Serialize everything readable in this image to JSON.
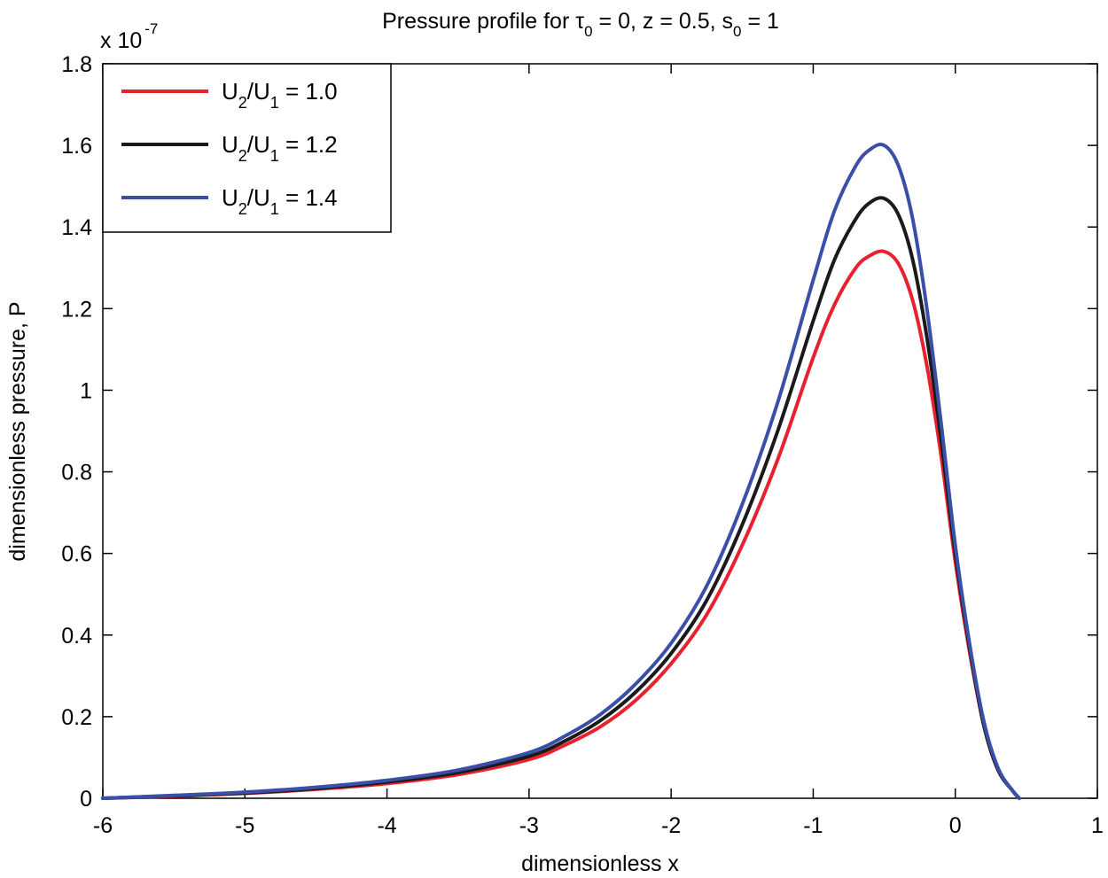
{
  "chart_data": {
    "type": "line",
    "title": {
      "prefix": "Pressure profile for ",
      "tau_symbol": "τ",
      "tau_sub": "0",
      "middle": " = 0, z = 0.5, s",
      "s_sub": "0",
      "suffix": " = 1"
    },
    "xlabel": "dimensionless x",
    "ylabel": "dimensionless pressure, P",
    "y_multiplier": {
      "base": "x 10",
      "exponent": "-7"
    },
    "xlim": [
      -6,
      1
    ],
    "ylim": [
      0,
      1.8
    ],
    "x_ticks": [
      -6,
      -5,
      -4,
      -3,
      -2,
      -1,
      0,
      1
    ],
    "x_tick_labels": [
      "-6",
      "-5",
      "-4",
      "-3",
      "-2",
      "-1",
      "0",
      "1"
    ],
    "y_ticks": [
      0,
      0.2,
      0.4,
      0.6,
      0.8,
      1.0,
      1.2,
      1.4,
      1.6,
      1.8
    ],
    "y_tick_labels": [
      "0",
      "0.2",
      "0.4",
      "0.6",
      "0.8",
      "1",
      "1.2",
      "1.4",
      "1.6",
      "1.8"
    ],
    "grid": false,
    "legend_position": "top-left",
    "series": [
      {
        "name": "U2/U1 = 1.0",
        "label": {
          "a": "U",
          "a_sub": "2",
          "mid": "/U",
          "b_sub": "1",
          "rest": " = 1.0"
        },
        "color": "#e8212e",
        "x": [
          -6.0,
          -5.5,
          -5.0,
          -4.5,
          -4.0,
          -3.5,
          -3.0,
          -2.75,
          -2.5,
          -2.25,
          -2.0,
          -1.75,
          -1.5,
          -1.25,
          -1.0,
          -0.85,
          -0.7,
          -0.6,
          -0.5,
          -0.4,
          -0.3,
          -0.2,
          -0.1,
          0.0,
          0.1,
          0.2,
          0.3,
          0.4,
          0.45
        ],
        "y": [
          0.0,
          0.005,
          0.012,
          0.022,
          0.036,
          0.058,
          0.095,
          0.13,
          0.175,
          0.24,
          0.33,
          0.45,
          0.62,
          0.83,
          1.08,
          1.21,
          1.3,
          1.33,
          1.34,
          1.31,
          1.22,
          1.06,
          0.84,
          0.58,
          0.36,
          0.18,
          0.07,
          0.02,
          0.0
        ]
      },
      {
        "name": "U2/U1 = 1.2",
        "label": {
          "a": "U",
          "a_sub": "2",
          "mid": "/U",
          "b_sub": "1",
          "rest": " = 1.2"
        },
        "color": "#1a1a1a",
        "x": [
          -6.0,
          -5.5,
          -5.0,
          -4.5,
          -4.0,
          -3.5,
          -3.0,
          -2.75,
          -2.5,
          -2.25,
          -2.0,
          -1.75,
          -1.5,
          -1.25,
          -1.0,
          -0.85,
          -0.7,
          -0.6,
          -0.5,
          -0.4,
          -0.3,
          -0.2,
          -0.1,
          0.0,
          0.1,
          0.2,
          0.3,
          0.4,
          0.45
        ],
        "y": [
          0.0,
          0.006,
          0.013,
          0.024,
          0.04,
          0.063,
          0.103,
          0.14,
          0.19,
          0.26,
          0.355,
          0.485,
          0.67,
          0.9,
          1.17,
          1.32,
          1.42,
          1.46,
          1.47,
          1.43,
          1.32,
          1.13,
          0.88,
          0.6,
          0.37,
          0.18,
          0.07,
          0.02,
          0.0
        ]
      },
      {
        "name": "U2/U1 = 1.4",
        "label": {
          "a": "U",
          "a_sub": "2",
          "mid": "/U",
          "b_sub": "1",
          "rest": " = 1.4"
        },
        "color": "#3a4fa8",
        "x": [
          -6.0,
          -5.5,
          -5.0,
          -4.5,
          -4.0,
          -3.5,
          -3.0,
          -2.75,
          -2.5,
          -2.25,
          -2.0,
          -1.75,
          -1.5,
          -1.25,
          -1.0,
          -0.85,
          -0.7,
          -0.6,
          -0.5,
          -0.4,
          -0.3,
          -0.2,
          -0.1,
          0.0,
          0.1,
          0.2,
          0.3,
          0.4,
          0.45
        ],
        "y": [
          0.0,
          0.007,
          0.015,
          0.027,
          0.044,
          0.069,
          0.112,
          0.152,
          0.205,
          0.28,
          0.38,
          0.52,
          0.72,
          0.97,
          1.27,
          1.44,
          1.55,
          1.59,
          1.6,
          1.55,
          1.42,
          1.2,
          0.92,
          0.62,
          0.38,
          0.19,
          0.075,
          0.02,
          0.0
        ]
      }
    ]
  }
}
